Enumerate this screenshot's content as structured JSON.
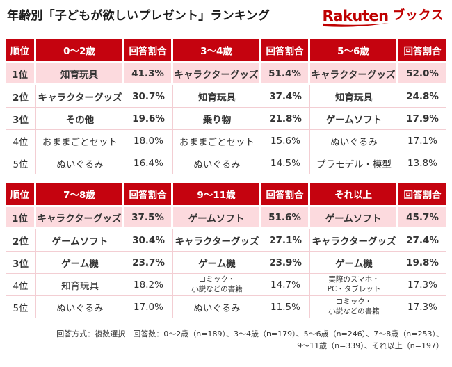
{
  "title": "年齢別「子どもが欲しいプレゼント」ランキング",
  "logo": {
    "brand": "Rakuten",
    "suffix": "ブックス",
    "color": "#bf0000"
  },
  "colors": {
    "header_red": "#c5030f",
    "rank1_pink": "#fcdade",
    "divider_pink": "#f3ced3",
    "logo_red": "#bf0000",
    "text_dark": "#333333"
  },
  "chart_data": [
    {
      "type": "table",
      "title": "年齢別ランキング（0〜6歳）",
      "columns": [
        "順位",
        "0〜2歳",
        "回答割合",
        "3〜4歳",
        "回答割合",
        "5〜6歳",
        "回答割合"
      ],
      "rows": [
        [
          "1位",
          "知育玩具",
          "41.3%",
          "キャラクターグッズ",
          "51.4%",
          "キャラクターグッズ",
          "52.0%"
        ],
        [
          "2位",
          "キャラクターグッズ",
          "30.7%",
          "知育玩具",
          "37.4%",
          "知育玩具",
          "24.8%"
        ],
        [
          "3位",
          "その他",
          "19.6%",
          "乗り物",
          "21.8%",
          "ゲームソフト",
          "17.9%"
        ],
        [
          "4位",
          "おままごとセット",
          "18.0%",
          "おままごとセット",
          "15.6%",
          "ぬいぐるみ",
          "17.1%"
        ],
        [
          "5位",
          "ぬいぐるみ",
          "16.4%",
          "ぬいぐるみ",
          "14.5%",
          "プラモデル・模型",
          "13.8%"
        ]
      ]
    },
    {
      "type": "table",
      "title": "年齢別ランキング（7歳以上）",
      "columns": [
        "順位",
        "7〜8歳",
        "回答割合",
        "9〜11歳",
        "回答割合",
        "それ以上",
        "回答割合"
      ],
      "rows": [
        [
          "1位",
          "キャラクターグッズ",
          "37.5%",
          "ゲームソフト",
          "51.6%",
          "ゲームソフト",
          "45.7%"
        ],
        [
          "2位",
          "ゲームソフト",
          "30.4%",
          "キャラクターグッズ",
          "27.1%",
          "キャラクターグッズ",
          "27.4%"
        ],
        [
          "3位",
          "ゲーム機",
          "23.7%",
          "ゲーム機",
          "23.9%",
          "ゲーム機",
          "19.8%"
        ],
        [
          "4位",
          "知育玩具",
          "18.2%",
          "コミック・\n小説などの書籍",
          "14.7%",
          "実際のスマホ・\nPC・タブレット",
          "17.3%"
        ],
        [
          "5位",
          "ぬいぐるみ",
          "17.0%",
          "ぬいぐるみ",
          "11.5%",
          "コミック・\n小説などの書籍",
          "17.3%"
        ]
      ]
    }
  ],
  "footnote": {
    "line1": "回答方式：複数選択　回答数：0〜2歳（n=189）、3〜4歳（n=179）、5〜6歳（n=246）、7〜8歳（n=253）、",
    "line2": "9〜11歳（n=339）、それ以上（n=197）"
  }
}
